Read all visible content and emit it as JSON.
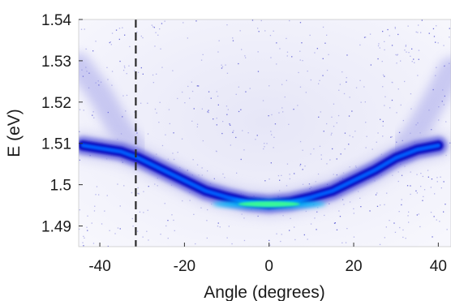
{
  "chart_data": {
    "type": "heatmap",
    "xlabel": "Angle (degrees)",
    "ylabel": "E (eV)",
    "xlim": [
      -45,
      43
    ],
    "ylim": [
      1.485,
      1.54
    ],
    "x_ticks": [
      -40,
      -20,
      0,
      20,
      40
    ],
    "y_ticks": [
      1.49,
      1.5,
      1.51,
      1.52,
      1.53,
      1.54
    ],
    "x_tick_labels": [
      "-40",
      "-20",
      "0",
      "20",
      "40"
    ],
    "y_tick_labels": [
      "1.49",
      "1.5",
      "1.51",
      "1.52",
      "1.53",
      "1.54"
    ],
    "colormap": [
      "#ffffff",
      "#c8c8f0",
      "#4a4ad8",
      "#1010c0",
      "#0060ff",
      "#00c8ff",
      "#40ff90"
    ],
    "lower_branch": {
      "x": [
        -44,
        -35,
        -31,
        -25,
        -20,
        -15,
        -10,
        -5,
        0,
        5,
        10,
        15,
        20,
        25,
        30,
        35,
        40
      ],
      "y": [
        1.5095,
        1.508,
        1.5065,
        1.5035,
        1.501,
        1.4985,
        1.497,
        1.4958,
        1.4953,
        1.4958,
        1.497,
        1.4985,
        1.501,
        1.5035,
        1.5065,
        1.5085,
        1.5095
      ]
    },
    "upper_branch": {
      "x": [
        -45,
        -40,
        -35,
        -32,
        32,
        35,
        40,
        43
      ],
      "y": [
        1.529,
        1.522,
        1.513,
        1.509,
        1.509,
        1.513,
        1.522,
        1.528
      ]
    },
    "vertical_marker_x": -31.5,
    "grid": false
  }
}
